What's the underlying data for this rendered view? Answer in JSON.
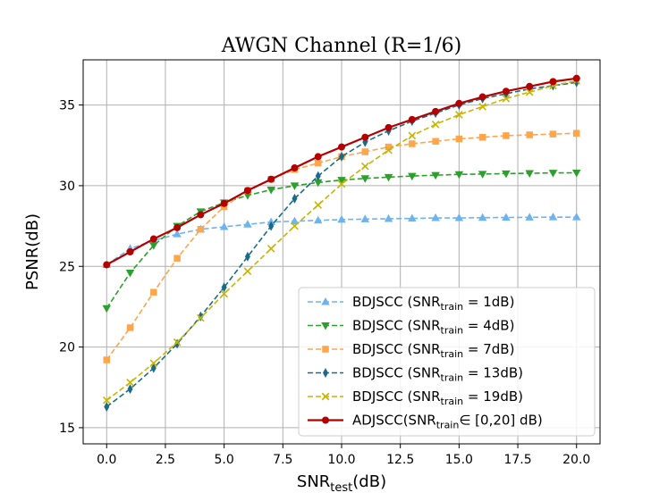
{
  "chart_data": {
    "type": "line",
    "title": "AWGN Channel (R=1/6)",
    "xlabel": {
      "main": "SNR",
      "sub": "test",
      "suffix": "(dB)"
    },
    "ylabel": "PSNR(dB)",
    "xlim": [
      -1.0,
      21.0
    ],
    "ylim": [
      14.0,
      37.8
    ],
    "xticks": [
      0.0,
      2.5,
      5.0,
      7.5,
      10.0,
      12.5,
      15.0,
      17.5,
      20.0
    ],
    "xtick_labels": [
      "0.0",
      "2.5",
      "5.0",
      "7.5",
      "10.0",
      "12.5",
      "15.0",
      "17.5",
      "20.0"
    ],
    "yticks": [
      15,
      20,
      25,
      30,
      35
    ],
    "ytick_labels": [
      "15",
      "20",
      "25",
      "30",
      "35"
    ],
    "grid": true,
    "legend_position": "lower-right",
    "x": [
      0,
      1,
      2,
      3,
      4,
      5,
      6,
      7,
      8,
      9,
      10,
      11,
      12,
      13,
      14,
      15,
      16,
      17,
      18,
      19,
      20
    ],
    "series": [
      {
        "name": "BDJSCC (SNR",
        "name_sub": "train",
        "name_suffix": " = 1dB)",
        "color": "#6cb4ee",
        "marker": "triangle-up",
        "linestyle": "dashed",
        "values": [
          25.1,
          26.1,
          26.6,
          27.0,
          27.3,
          27.45,
          27.6,
          27.75,
          27.8,
          27.85,
          27.9,
          27.93,
          27.95,
          27.97,
          28.0,
          28.0,
          28.02,
          28.03,
          28.04,
          28.05,
          28.05
        ]
      },
      {
        "name": "BDJSCC (SNR",
        "name_sub": "train",
        "name_suffix": " = 4dB)",
        "color": "#2ca02c",
        "marker": "triangle-down",
        "linestyle": "dashed",
        "values": [
          22.4,
          24.6,
          26.3,
          27.5,
          28.4,
          28.95,
          29.4,
          29.75,
          30.0,
          30.2,
          30.35,
          30.45,
          30.53,
          30.6,
          30.65,
          30.7,
          30.72,
          30.75,
          30.77,
          30.79,
          30.8
        ]
      },
      {
        "name": "BDJSCC (SNR",
        "name_sub": "train",
        "name_suffix": " = 7dB)",
        "color": "#ffa64d",
        "marker": "square",
        "linestyle": "dashed",
        "values": [
          19.2,
          21.2,
          23.4,
          25.5,
          27.3,
          28.7,
          29.7,
          30.4,
          31.0,
          31.4,
          31.8,
          32.1,
          32.4,
          32.6,
          32.75,
          32.9,
          33.0,
          33.1,
          33.15,
          33.2,
          33.25
        ]
      },
      {
        "name": "BDJSCC (SNR",
        "name_sub": "train",
        "name_suffix": " = 13dB)",
        "color": "#1a6b8a",
        "marker": "diamond",
        "linestyle": "dashed",
        "values": [
          16.3,
          17.4,
          18.7,
          20.2,
          21.9,
          23.7,
          25.6,
          27.5,
          29.2,
          30.6,
          31.8,
          32.7,
          33.4,
          34.0,
          34.5,
          35.0,
          35.4,
          35.7,
          36.0,
          36.2,
          36.4
        ]
      },
      {
        "name": "BDJSCC (SNR",
        "name_sub": "train",
        "name_suffix": " = 19dB)",
        "color": "#c8b400",
        "marker": "x",
        "linestyle": "dashed",
        "values": [
          16.7,
          17.8,
          19.0,
          20.3,
          21.8,
          23.3,
          24.7,
          26.1,
          27.5,
          28.8,
          30.1,
          31.2,
          32.2,
          33.1,
          33.8,
          34.4,
          34.9,
          35.4,
          35.8,
          36.2,
          36.5
        ]
      },
      {
        "name": "ADJSCC(SNR",
        "name_sub": "train",
        "name_suffix": "∈ [0,20] dB)",
        "color": "#b40000",
        "marker": "circle",
        "linestyle": "solid",
        "values": [
          25.1,
          25.9,
          26.7,
          27.4,
          28.2,
          28.9,
          29.7,
          30.4,
          31.1,
          31.8,
          32.4,
          33.0,
          33.6,
          34.1,
          34.6,
          35.1,
          35.5,
          35.85,
          36.15,
          36.45,
          36.65
        ]
      }
    ]
  }
}
